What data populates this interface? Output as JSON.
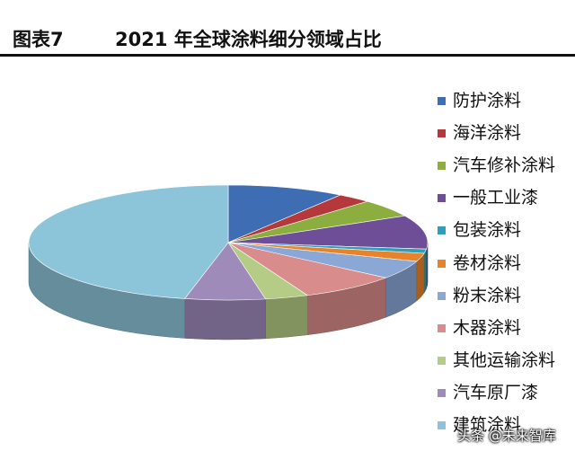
{
  "header": {
    "figure_no": "图表7",
    "title": "2021 年全球涂料细分领域占比"
  },
  "watermark": "头条 @未来智库",
  "chart_data": {
    "type": "pie",
    "style": "3d",
    "legend_position": "right",
    "slices": [
      {
        "name": "防护涂料",
        "value": 9.5,
        "color": "#3E6DB3"
      },
      {
        "name": "海洋涂料",
        "value": 2.8,
        "color": "#B5383A"
      },
      {
        "name": "汽车修补涂料",
        "value": 5.0,
        "color": "#8BAE3F"
      },
      {
        "name": "一般工业漆",
        "value": 9.5,
        "color": "#6E4E96"
      },
      {
        "name": "包装涂料",
        "value": 1.2,
        "color": "#2E9FB8"
      },
      {
        "name": "卷材涂料",
        "value": 2.3,
        "color": "#E8832A"
      },
      {
        "name": "粉末涂料",
        "value": 5.2,
        "color": "#8AA7D6"
      },
      {
        "name": "木器涂料",
        "value": 8.0,
        "color": "#D88C8B"
      },
      {
        "name": "其他运输涂料",
        "value": 3.5,
        "color": "#B5CC86"
      },
      {
        "name": "汽车原厂漆",
        "value": 6.5,
        "color": "#9F8BBA"
      },
      {
        "name": "建筑涂料",
        "value": 46.5,
        "color": "#8CC4D9"
      }
    ]
  }
}
